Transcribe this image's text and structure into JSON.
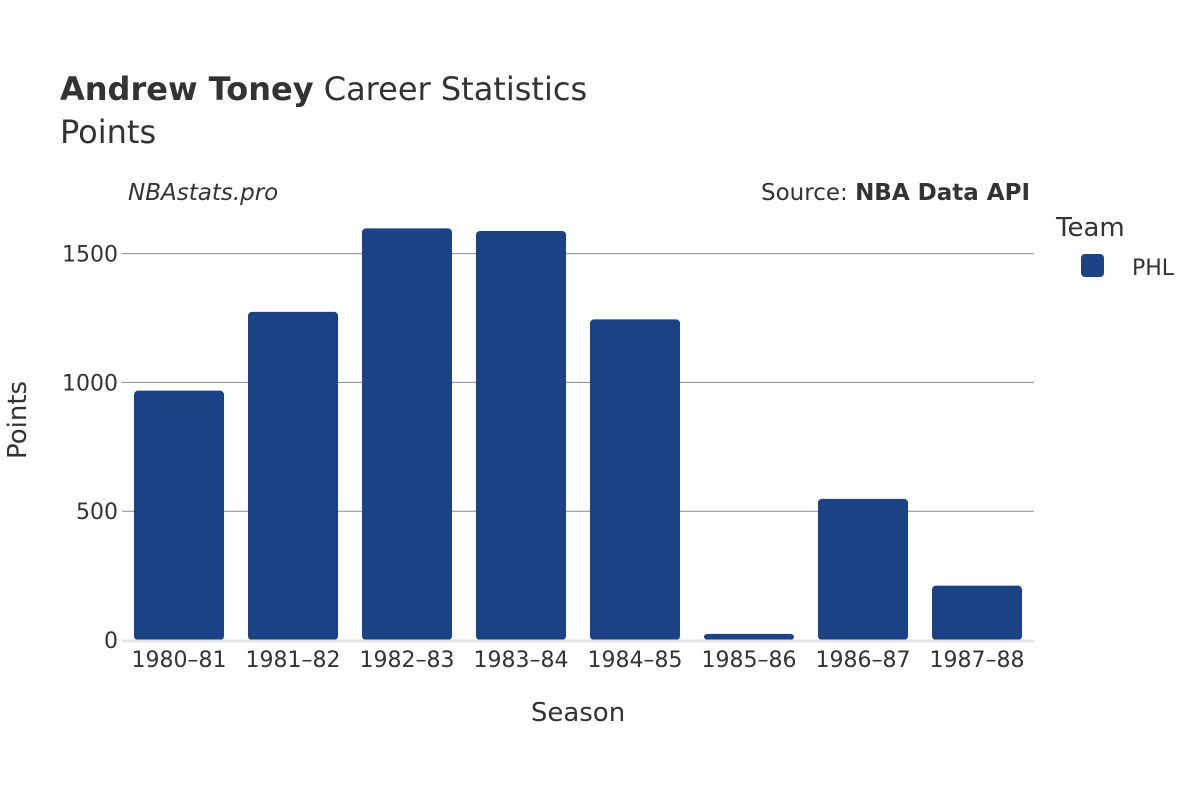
{
  "title": {
    "bold": "Andrew Toney",
    "rest": " Career Statistics",
    "subtitle": "Points"
  },
  "watermark": "NBAstats.pro",
  "source": {
    "prefix": "Source: ",
    "name": "NBA Data API"
  },
  "legend": {
    "title": "Team",
    "items": [
      {
        "label": "PHL",
        "color": "#1c4286"
      }
    ]
  },
  "chart_data": {
    "type": "bar",
    "title": "Andrew Toney Career Statistics",
    "subtitle": "Points",
    "xlabel": "Season",
    "ylabel": "Points",
    "categories": [
      "1980–81",
      "1981–82",
      "1982–83",
      "1983–84",
      "1984–85",
      "1985–86",
      "1986–87",
      "1987–88"
    ],
    "series": [
      {
        "name": "PHL",
        "color": "#1c4286",
        "values": [
          968,
          1274,
          1598,
          1588,
          1245,
          24,
          548,
          211
        ]
      }
    ],
    "ylim": [
      0,
      1650
    ],
    "yticks": [
      0,
      500,
      1000,
      1500
    ],
    "grid": true,
    "legend_position": "right"
  }
}
